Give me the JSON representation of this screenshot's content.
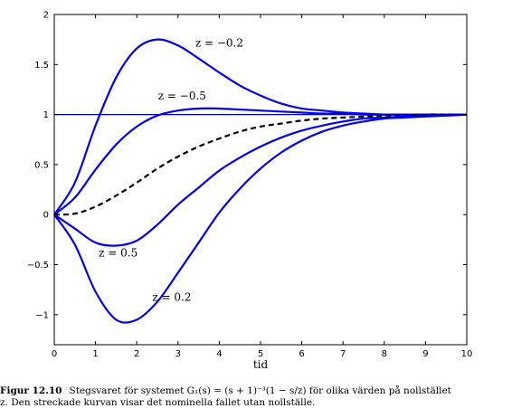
{
  "chart_data": {
    "type": "line",
    "title": "",
    "xlabel": "tid",
    "ylabel": "",
    "xlim": [
      0,
      10
    ],
    "ylim": [
      -1.3,
      2
    ],
    "xticks": [
      0,
      1,
      2,
      3,
      4,
      5,
      6,
      7,
      8,
      9,
      10
    ],
    "yticks": [
      -1,
      -0.5,
      0,
      0.5,
      1,
      1.5,
      2
    ],
    "ytick_labels": [
      "−1",
      "−0.5",
      "0",
      "0.5",
      "1",
      "1.5",
      "2"
    ],
    "grid": false,
    "reference_line": {
      "y": 1,
      "color": "#0000cc"
    },
    "colors": {
      "series": "#0000ee",
      "nominal": "#000000",
      "reference": "#0000cc"
    },
    "series": [
      {
        "z": -0.2,
        "style": "solid",
        "annotation": "z = −0.2",
        "x": [
          0,
          0.5,
          1,
          1.5,
          2,
          2.5,
          3,
          3.5,
          4,
          4.5,
          5,
          5.5,
          6,
          6.5,
          7,
          7.5,
          8,
          8.5,
          9,
          9.5,
          10
        ],
        "y": [
          0,
          0.32,
          0.89,
          1.37,
          1.66,
          1.75,
          1.69,
          1.56,
          1.42,
          1.29,
          1.19,
          1.11,
          1.06,
          1.04,
          1.02,
          1.01,
          1.0,
          1.0,
          1.0,
          1.0,
          1.0
        ]
      },
      {
        "z": -0.5,
        "style": "solid",
        "annotation": "z = −0.5",
        "x": [
          0,
          0.5,
          1,
          1.5,
          2,
          2.5,
          3,
          3.5,
          4,
          4.5,
          5,
          5.5,
          6,
          6.5,
          7,
          7.5,
          8,
          8.5,
          9,
          9.5,
          10
        ],
        "y": [
          0,
          0.17,
          0.45,
          0.7,
          0.88,
          0.99,
          1.04,
          1.06,
          1.06,
          1.05,
          1.04,
          1.03,
          1.02,
          1.01,
          1.01,
          1.0,
          1.0,
          1.0,
          1.0,
          1.0,
          1.0
        ]
      },
      {
        "z": null,
        "style": "dashed",
        "annotation": "",
        "x": [
          0,
          0.5,
          1,
          1.5,
          2,
          2.5,
          3,
          3.5,
          4,
          4.5,
          5,
          5.5,
          6,
          6.5,
          7,
          7.5,
          8,
          8.5,
          9,
          9.5,
          10
        ],
        "y": [
          0,
          0.01,
          0.08,
          0.19,
          0.32,
          0.46,
          0.58,
          0.68,
          0.76,
          0.83,
          0.88,
          0.91,
          0.94,
          0.96,
          0.97,
          0.98,
          0.99,
          0.99,
          1.0,
          1.0,
          1.0
        ]
      },
      {
        "z": 0.5,
        "style": "solid",
        "annotation": "z = 0.5",
        "x": [
          0,
          0.5,
          1,
          1.5,
          2,
          2.5,
          3,
          3.5,
          4,
          4.5,
          5,
          5.5,
          6,
          6.5,
          7,
          7.5,
          8,
          8.5,
          9,
          9.5,
          10
        ],
        "y": [
          0,
          -0.14,
          -0.28,
          -0.31,
          -0.26,
          -0.1,
          0.1,
          0.27,
          0.44,
          0.57,
          0.68,
          0.77,
          0.84,
          0.89,
          0.93,
          0.96,
          0.97,
          0.98,
          0.99,
          0.99,
          1.0
        ]
      },
      {
        "z": 0.2,
        "style": "solid",
        "annotation": "z = 0.2",
        "x": [
          0,
          0.5,
          1,
          1.5,
          2,
          2.5,
          3,
          3.5,
          4,
          4.5,
          5,
          5.5,
          6,
          6.5,
          7,
          7.5,
          8,
          8.5,
          9,
          9.5,
          10
        ],
        "y": [
          0,
          -0.3,
          -0.77,
          -1.05,
          -1.05,
          -0.87,
          -0.58,
          -0.28,
          0.02,
          0.26,
          0.46,
          0.62,
          0.74,
          0.83,
          0.89,
          0.93,
          0.96,
          0.97,
          0.98,
          0.99,
          1.0
        ]
      }
    ]
  },
  "caption": {
    "label": "Figur 12.10",
    "line1": "Stegsvaret för systemet G₁(s) = (s + 1)⁻³(1 − s/z) för olika värden på nollstället",
    "line2": "z. Den streckade kurvan visar det nominella fallet utan nollställe."
  }
}
